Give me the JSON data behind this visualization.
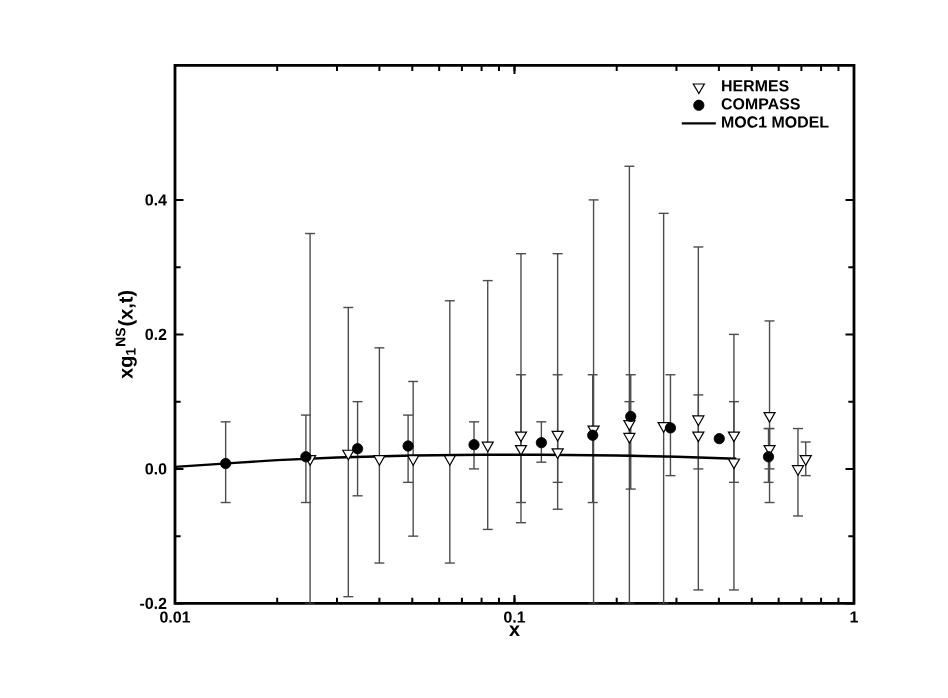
{
  "chart_data": {
    "type": "scatter",
    "xlabel": "x",
    "ylabel": "xg$_{1}$$^{NS}$(x,t)",
    "log": "x",
    "xlim": [
      0.01,
      1
    ],
    "xticks": [
      0.01,
      0.1,
      1
    ],
    "ylim": [
      -0.2,
      0.6
    ],
    "yticks": [
      -0.2,
      {
        "value": 0,
        "label": "0.0"
      },
      0.2,
      0.4
    ],
    "legend": "top right",
    "grid": false,
    "series": [
      {
        "name": "HERMES",
        "marker": "triangle",
        "color": "#000000",
        "x": [
          0.025,
          0.0324,
          0.04,
          0.0503,
          0.0645,
          0.0834,
          0.1045,
          0.1045,
          0.134,
          0.134,
          0.171,
          0.218,
          0.218,
          0.275,
          0.348,
          0.348,
          0.443,
          0.443,
          0.564,
          0.564,
          0.684,
          0.721
        ],
        "values": [
          0.015,
          0.023,
          0.015,
          0.015,
          0.015,
          0.035,
          0.05,
          0.03,
          0.051,
          0.025,
          0.059,
          0.067,
          0.048,
          0.064,
          0.074,
          0.05,
          0.05,
          0.01,
          0.079,
          0.03,
          0.0,
          0.015
        ],
        "errors": [
          [
            -0.2,
            0.35
          ],
          [
            -0.19,
            0.24
          ],
          [
            -0.14,
            0.18
          ],
          [
            -0.1,
            0.13
          ],
          [
            -0.14,
            0.25
          ],
          [
            -0.09,
            0.28
          ],
          [
            -0.08,
            0.32
          ],
          [
            -0.05,
            0.14
          ],
          [
            -0.06,
            0.32
          ],
          [
            -0.02,
            0.14
          ],
          [
            -0.2,
            0.4
          ],
          [
            -0.2,
            0.45
          ],
          [
            0.02,
            0.1
          ],
          [
            -0.2,
            0.38
          ],
          [
            -0.18,
            0.33
          ],
          [
            0.0,
            0.11
          ],
          [
            -0.18,
            0.2
          ],
          [
            -0.02,
            0.1
          ],
          [
            -0.05,
            0.22
          ],
          [
            0.0,
            0.06
          ],
          [
            -0.07,
            0.06
          ],
          [
            -0.01,
            0.04
          ]
        ]
      },
      {
        "name": "COMPASS",
        "marker": "circle",
        "color": "#000000",
        "x": [
          0.0141,
          0.0243,
          0.0345,
          0.0486,
          0.076,
          0.12,
          0.17,
          0.22,
          0.288,
          0.401,
          0.56
        ],
        "values": [
          0.008,
          0.018,
          0.03,
          0.034,
          0.036,
          0.039,
          0.05,
          0.078,
          0.061,
          0.045,
          0.018
        ],
        "errors": [
          [
            -0.05,
            0.07
          ],
          [
            -0.05,
            0.08
          ],
          [
            -0.04,
            0.1
          ],
          [
            -0.02,
            0.08
          ],
          [
            0.0,
            0.07
          ],
          [
            0.01,
            0.07
          ],
          [
            -0.05,
            0.14
          ],
          [
            -0.03,
            0.14
          ],
          [
            -0.01,
            0.14
          ],
          null,
          [
            -0.02,
            0.06
          ]
        ]
      },
      {
        "name": "MOC1 MODEL",
        "type": "line",
        "line_style": "solid",
        "color": "#000000",
        "x": [
          0.01,
          0.015,
          0.02,
          0.03,
          0.05,
          0.08,
          0.12,
          0.2,
          0.3,
          0.45
        ],
        "values": [
          0.003,
          0.009,
          0.013,
          0.017,
          0.02,
          0.021,
          0.021,
          0.02,
          0.018,
          0.015
        ]
      }
    ]
  }
}
